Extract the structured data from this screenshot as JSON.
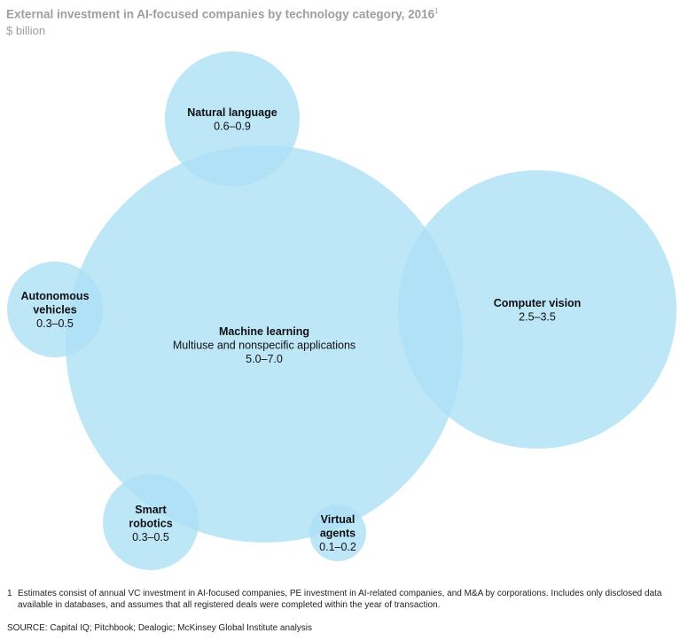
{
  "title": "External investment in AI-focused companies by technology category, 2016",
  "title_footnote_mark": "1",
  "subtitle": "$ billion",
  "chart_data": {
    "type": "bubble",
    "unit": "$ billion",
    "bubble_color": "#ade0f5",
    "categories": [
      {
        "id": "machine-learning",
        "label_lines": [
          "Machine learning"
        ],
        "description": "Multiuse and nonspecific applications",
        "value_label": "5.0–7.0",
        "min": 5.0,
        "max": 7.0
      },
      {
        "id": "computer-vision",
        "label_lines": [
          "Computer vision"
        ],
        "description": "",
        "value_label": "2.5–3.5",
        "min": 2.5,
        "max": 3.5
      },
      {
        "id": "natural-language",
        "label_lines": [
          "Natural language"
        ],
        "description": "",
        "value_label": "0.6–0.9",
        "min": 0.6,
        "max": 0.9
      },
      {
        "id": "autonomous-vehicles",
        "label_lines": [
          "Autonomous",
          "vehicles"
        ],
        "description": "",
        "value_label": "0.3–0.5",
        "min": 0.3,
        "max": 0.5
      },
      {
        "id": "smart-robotics",
        "label_lines": [
          "Smart",
          "robotics"
        ],
        "description": "",
        "value_label": "0.3–0.5",
        "min": 0.3,
        "max": 0.5
      },
      {
        "id": "virtual-agents",
        "label_lines": [
          "Virtual",
          "agents"
        ],
        "description": "",
        "value_label": "0.1–0.2",
        "min": 0.1,
        "max": 0.2
      }
    ]
  },
  "footnote": {
    "number": "1",
    "text": "Estimates consist of annual VC investment in AI-focused companies, PE investment in AI-related companies, and M&A by corporations. Includes only disclosed data available in databases, and assumes that all registered deals were completed within the year of transaction."
  },
  "source": "SOURCE:  Capital IQ; Pitchbook; Dealogic; McKinsey Global Institute analysis"
}
